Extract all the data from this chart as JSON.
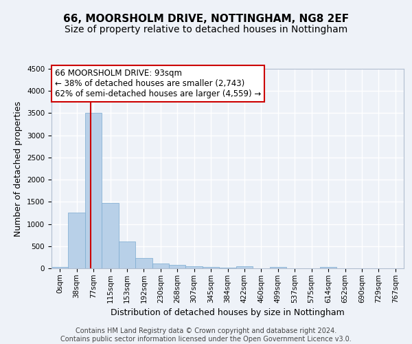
{
  "title1": "66, MOORSHOLM DRIVE, NOTTINGHAM, NG8 2EF",
  "title2": "Size of property relative to detached houses in Nottingham",
  "xlabel": "Distribution of detached houses by size in Nottingham",
  "ylabel": "Number of detached properties",
  "bin_labels": [
    "0sqm",
    "38sqm",
    "77sqm",
    "115sqm",
    "153sqm",
    "192sqm",
    "230sqm",
    "268sqm",
    "307sqm",
    "345sqm",
    "384sqm",
    "422sqm",
    "460sqm",
    "499sqm",
    "537sqm",
    "575sqm",
    "614sqm",
    "652sqm",
    "690sqm",
    "729sqm",
    "767sqm"
  ],
  "bar_values": [
    25,
    1250,
    3500,
    1480,
    600,
    230,
    110,
    75,
    40,
    25,
    15,
    45,
    5,
    30,
    0,
    0,
    30,
    0,
    0,
    0,
    0
  ],
  "bar_color": "#b8d0e8",
  "bar_edge_color": "#7aaad0",
  "ylim": [
    0,
    4500
  ],
  "yticks": [
    0,
    500,
    1000,
    1500,
    2000,
    2500,
    3000,
    3500,
    4000,
    4500
  ],
  "vline_x_idx": 2,
  "vline_color": "#cc0000",
  "annotation_text": "66 MOORSHOLM DRIVE: 93sqm\n← 38% of detached houses are smaller (2,743)\n62% of semi-detached houses are larger (4,559) →",
  "annotation_box_color": "#ffffff",
  "annotation_box_edge": "#cc0000",
  "footer_text": "Contains HM Land Registry data © Crown copyright and database right 2024.\nContains public sector information licensed under the Open Government Licence v3.0.",
  "bg_color": "#eef2f8",
  "plot_bg_color": "#eef2f8",
  "grid_color": "#ffffff",
  "title1_fontsize": 11,
  "title2_fontsize": 10,
  "xlabel_fontsize": 9,
  "ylabel_fontsize": 9,
  "tick_fontsize": 7.5,
  "footer_fontsize": 7,
  "ann_fontsize": 8.5
}
